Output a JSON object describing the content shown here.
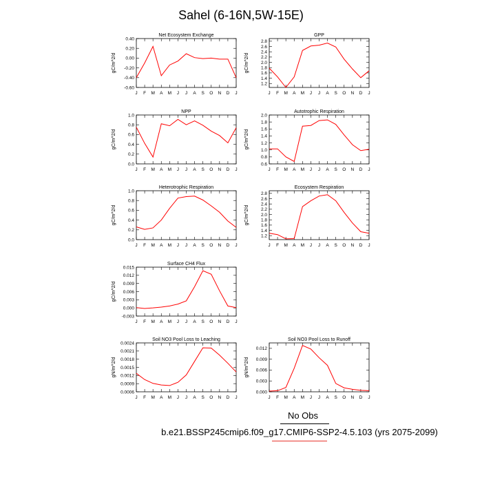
{
  "title": "Sahel (6-16N,5W-15E)",
  "footer": {
    "obs_label": "No Obs",
    "run_label": "b.e21.BSSP245cmip6.f09_g17.CMIP6-SSP2-4.5.103 (yrs 2075-2099)",
    "obs_line_color": "#000000",
    "run_line_color": "#e8322b"
  },
  "month_ticks": [
    "J",
    "F",
    "M",
    "A",
    "M",
    "J",
    "J",
    "A",
    "S",
    "O",
    "N",
    "D",
    "J"
  ],
  "line_color": "#ff0000",
  "chart_data": [
    {
      "id": "nee",
      "type": "line",
      "title": "Net Ecosystem Exchange",
      "ylabel": "gC/m^2/d",
      "ylim": [
        -0.6,
        0.4
      ],
      "yticks": [
        -0.6,
        -0.4,
        -0.2,
        0.0,
        0.2,
        0.4
      ],
      "ytick_labels": [
        "-0.60",
        "-0.40",
        "-0.20",
        "0.00",
        "0.20",
        "0.40"
      ],
      "values": [
        -0.4,
        -0.1,
        0.24,
        -0.36,
        -0.14,
        -0.06,
        0.09,
        0.01,
        -0.01,
        0.0,
        -0.02,
        -0.02,
        -0.4
      ]
    },
    {
      "id": "gpp",
      "type": "line",
      "title": "GPP",
      "ylabel": "gC/m^2/d",
      "ylim": [
        1.05,
        2.9
      ],
      "yticks": [
        1.2,
        1.4,
        1.6,
        1.8,
        2.0,
        2.2,
        2.4,
        2.6,
        2.8
      ],
      "ytick_labels": [
        "1.2",
        "1.4",
        "1.6",
        "1.8",
        "2.0",
        "2.2",
        "2.4",
        "2.6",
        "2.8"
      ],
      "values": [
        1.78,
        1.45,
        1.05,
        1.45,
        2.45,
        2.62,
        2.65,
        2.73,
        2.58,
        2.12,
        1.75,
        1.42,
        1.68
      ]
    },
    {
      "id": "npp",
      "type": "line",
      "title": "NPP",
      "ylabel": "gC/m^2/d",
      "ylim": [
        0.0,
        1.0
      ],
      "yticks": [
        0.0,
        0.2,
        0.4,
        0.6,
        0.8,
        1.0
      ],
      "ytick_labels": [
        "0.0",
        "0.2",
        "0.4",
        "0.6",
        "0.8",
        "1.0"
      ],
      "values": [
        0.75,
        0.42,
        0.14,
        0.82,
        0.78,
        0.91,
        0.8,
        0.88,
        0.79,
        0.67,
        0.58,
        0.43,
        0.74
      ]
    },
    {
      "id": "ar",
      "type": "line",
      "title": "Autotrophic Respiration",
      "ylabel": "gC/m^2/d",
      "ylim": [
        0.6,
        2.0
      ],
      "yticks": [
        0.6,
        0.8,
        1.0,
        1.2,
        1.4,
        1.6,
        1.8,
        2.0
      ],
      "ytick_labels": [
        "0.6",
        "0.8",
        "1.0",
        "1.2",
        "1.4",
        "1.6",
        "1.8",
        "2.0"
      ],
      "values": [
        1.03,
        1.03,
        0.8,
        0.67,
        1.68,
        1.7,
        1.84,
        1.86,
        1.73,
        1.43,
        1.15,
        0.98,
        1.02
      ]
    },
    {
      "id": "hr",
      "type": "line",
      "title": "Heterotrophic Respiration",
      "ylabel": "gC/m^2/d",
      "ylim": [
        0.0,
        1.0
      ],
      "yticks": [
        0.0,
        0.2,
        0.4,
        0.6,
        0.8,
        1.0
      ],
      "ytick_labels": [
        "0.0",
        "0.2",
        "0.4",
        "0.6",
        "0.8",
        "1.0"
      ],
      "values": [
        0.26,
        0.21,
        0.24,
        0.4,
        0.64,
        0.85,
        0.88,
        0.89,
        0.81,
        0.69,
        0.56,
        0.38,
        0.25
      ]
    },
    {
      "id": "er",
      "type": "line",
      "title": "Ecosystem Respiration",
      "ylabel": "gC/m^2/d",
      "ylim": [
        1.05,
        2.9
      ],
      "yticks": [
        1.2,
        1.4,
        1.6,
        1.8,
        2.0,
        2.2,
        2.4,
        2.6,
        2.8
      ],
      "ytick_labels": [
        "1.2",
        "1.4",
        "1.6",
        "1.8",
        "2.0",
        "2.2",
        "2.4",
        "2.6",
        "2.8"
      ],
      "values": [
        1.29,
        1.24,
        1.08,
        1.09,
        2.3,
        2.52,
        2.7,
        2.75,
        2.52,
        2.08,
        1.68,
        1.35,
        1.29
      ]
    },
    {
      "id": "ch4",
      "type": "line",
      "title": "Surface CH4 Flux",
      "ylabel": "gC/m^2/d",
      "ylim": [
        -0.003,
        0.015
      ],
      "yticks": [
        -0.003,
        0.0,
        0.003,
        0.006,
        0.009,
        0.012,
        0.015
      ],
      "ytick_labels": [
        "-0.003",
        "0.000",
        "0.003",
        "0.006",
        "0.009",
        "0.012",
        "0.015"
      ],
      "values": [
        0.0001,
        -0.0002,
        0.0,
        0.0003,
        0.0007,
        0.0014,
        0.0026,
        0.0078,
        0.0137,
        0.0124,
        0.0063,
        0.0007,
        0.0001
      ]
    },
    {
      "id": "leach",
      "type": "line",
      "title": "Soil NO3 Pool Loss to Leaching",
      "ylabel": "gN/m^2/d",
      "ylim": [
        0.0006,
        0.0024
      ],
      "yticks": [
        0.0006,
        0.0009,
        0.0012,
        0.0015,
        0.0018,
        0.0021,
        0.0024
      ],
      "ytick_labels": [
        "0.0006",
        "0.0009",
        "0.0012",
        "0.0015",
        "0.0018",
        "0.0021",
        "0.0024"
      ],
      "values": [
        0.00128,
        0.00105,
        0.00091,
        0.00085,
        0.00083,
        0.00095,
        0.00122,
        0.00172,
        0.00222,
        0.00221,
        0.00195,
        0.00165,
        0.00133
      ]
    },
    {
      "id": "runoff",
      "type": "line",
      "title": "Soil NO3 Pool Loss to Runoff",
      "ylabel": "gN/m^2/d",
      "ylim": [
        0.0,
        0.0135
      ],
      "yticks": [
        0.0,
        0.003,
        0.006,
        0.009,
        0.012
      ],
      "ytick_labels": [
        "0.000",
        "0.003",
        "0.006",
        "0.009",
        "0.012"
      ],
      "values": [
        0.0002,
        0.0003,
        0.0012,
        0.0065,
        0.0128,
        0.0118,
        0.0094,
        0.0073,
        0.0023,
        0.0011,
        0.0007,
        0.0004,
        0.0003
      ]
    }
  ]
}
